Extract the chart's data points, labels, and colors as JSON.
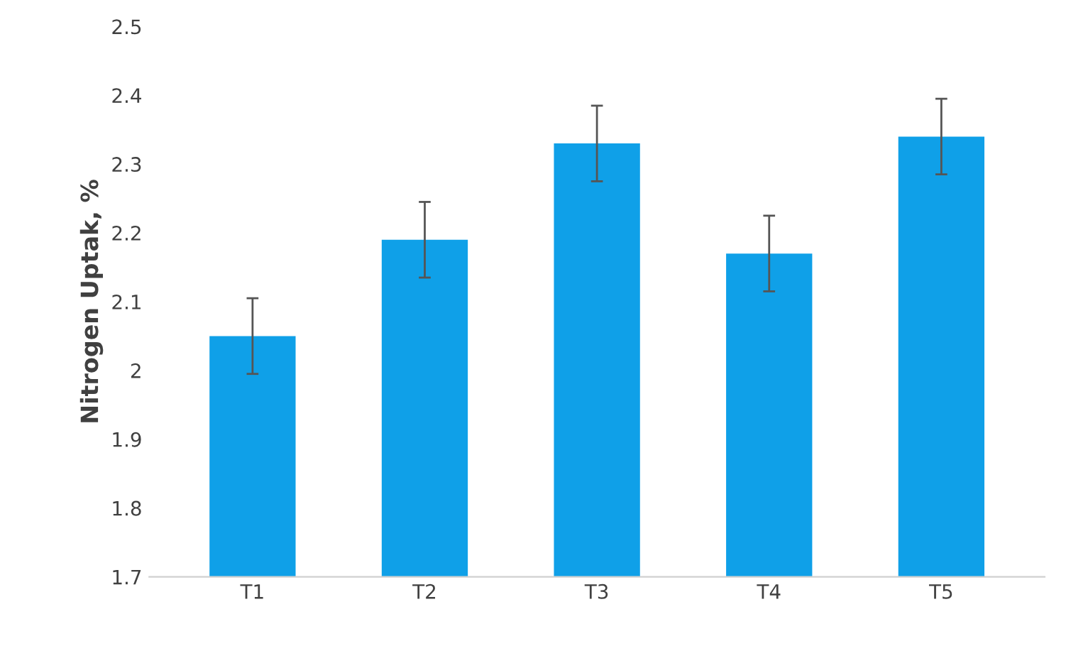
{
  "chart_data": {
    "type": "bar",
    "ylabel": "Nitrogen Uptak, %",
    "categories": [
      "T1",
      "T2",
      "T3",
      "T4",
      "T5"
    ],
    "values": [
      2.05,
      2.19,
      2.33,
      2.17,
      2.34
    ],
    "errors": [
      0.055,
      0.055,
      0.055,
      0.055,
      0.055
    ],
    "color": "#0fa0e8",
    "ylim": [
      1.7,
      2.5
    ],
    "yticks": [
      1.7,
      1.8,
      1.9,
      2,
      2.1,
      2.2,
      2.3,
      2.4,
      2.5
    ],
    "grid": false
  }
}
